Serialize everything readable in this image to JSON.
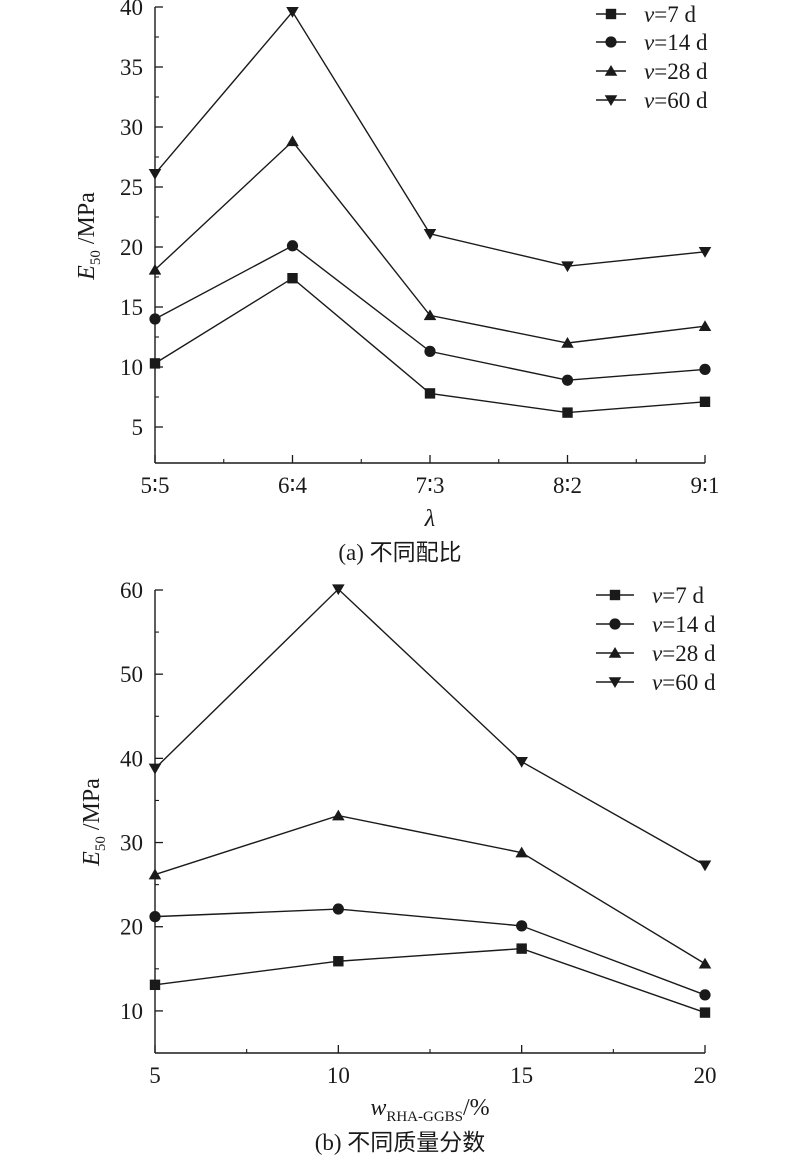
{
  "figure_panels": [
    {
      "caption": "(a) 不同配比"
    },
    {
      "caption": "(b) 不同质量分数"
    }
  ],
  "chart_data": [
    {
      "type": "line",
      "title": "",
      "xlabel": "λ",
      "ylabel": {
        "symbol": "E",
        "subscript": "50",
        "unit": " /MPa"
      },
      "categories": [
        "5∶5",
        "6∶4",
        "7∶3",
        "8∶2",
        "9∶1"
      ],
      "x": [
        1,
        2,
        3,
        4,
        5
      ],
      "xlim": [
        1,
        5
      ],
      "ylim": [
        2,
        40
      ],
      "yticks": [
        5,
        10,
        15,
        20,
        25,
        30,
        35,
        40
      ],
      "grid": false,
      "legend_position": "top-right",
      "series": [
        {
          "name": "v=7 d",
          "label_var": "v",
          "label_rest": "=7 d",
          "marker": "square",
          "values": [
            10.3,
            17.4,
            7.8,
            6.2,
            7.1
          ]
        },
        {
          "name": "v=14 d",
          "label_var": "v",
          "label_rest": "=14 d",
          "marker": "circle",
          "values": [
            14.0,
            20.1,
            11.3,
            8.9,
            9.8
          ]
        },
        {
          "name": "v=28 d",
          "label_var": "v",
          "label_rest": "=28 d",
          "marker": "triangle-up",
          "values": [
            18.1,
            28.8,
            14.3,
            12.0,
            13.4
          ]
        },
        {
          "name": "v=60 d",
          "label_var": "v",
          "label_rest": "=60 d",
          "marker": "triangle-down",
          "values": [
            26.1,
            39.6,
            21.1,
            18.4,
            19.6
          ]
        }
      ]
    },
    {
      "type": "line",
      "title": "",
      "xlabel": {
        "symbol": "w",
        "subscript": "RHA-GGBS",
        "unit": "/%"
      },
      "categories": [
        "5",
        "10",
        "15",
        "20"
      ],
      "x": [
        5,
        10,
        15,
        20
      ],
      "xlim": [
        5,
        20
      ],
      "ylim": [
        5,
        60
      ],
      "yticks": [
        10,
        20,
        30,
        40,
        50,
        60
      ],
      "grid": false,
      "legend_position": "top-right",
      "ylabel": {
        "symbol": "E",
        "subscript": "50",
        "unit": " /MPa"
      },
      "series": [
        {
          "name": "v=7 d",
          "label_var": "v",
          "label_rest": "=7 d",
          "marker": "square",
          "values": [
            13.1,
            15.9,
            17.4,
            9.8
          ]
        },
        {
          "name": "v=14 d",
          "label_var": "v",
          "label_rest": "=14 d",
          "marker": "circle",
          "values": [
            21.2,
            22.1,
            20.1,
            11.9
          ]
        },
        {
          "name": "v=28 d",
          "label_var": "v",
          "label_rest": "=28 d",
          "marker": "triangle-up",
          "values": [
            26.2,
            33.2,
            28.8,
            15.6
          ]
        },
        {
          "name": "v=60 d",
          "label_var": "v",
          "label_rest": "=60 d",
          "marker": "triangle-down",
          "values": [
            38.8,
            60.1,
            39.6,
            27.3
          ]
        }
      ]
    }
  ]
}
